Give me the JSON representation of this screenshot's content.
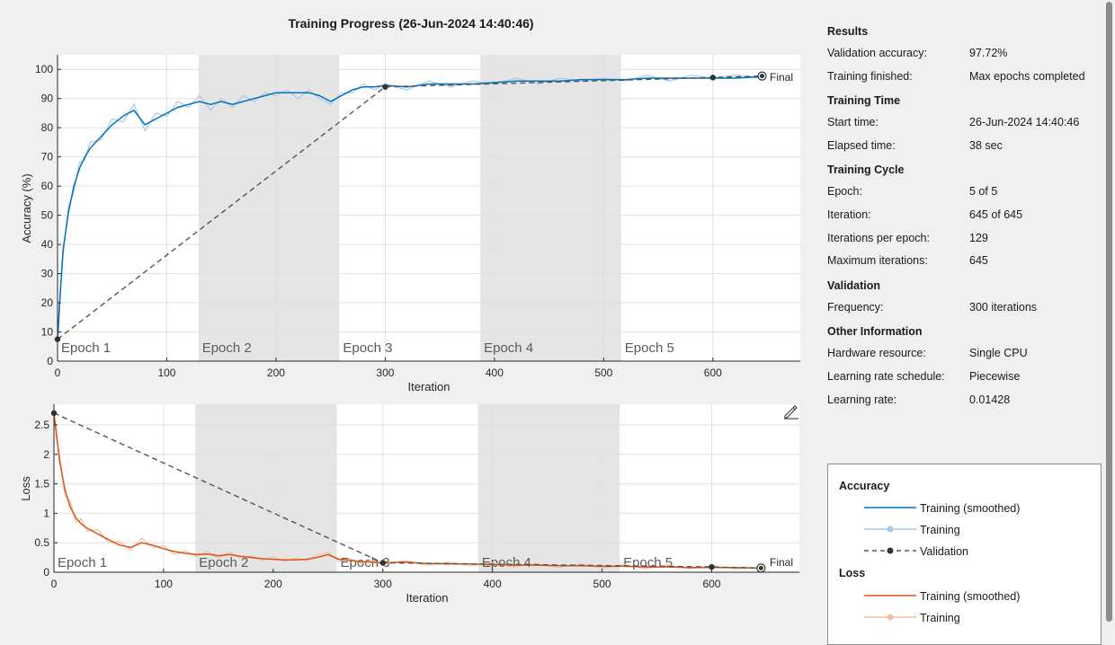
{
  "title": "Training Progress (26-Jun-2024 14:40:46)",
  "accuracy_plot": {
    "ylabel": "Accuracy (%)",
    "xlabel": "Iteration",
    "xticks": [
      "0",
      "100",
      "200",
      "300",
      "400",
      "500",
      "600"
    ],
    "yticks": [
      "0",
      "10",
      "20",
      "30",
      "40",
      "50",
      "60",
      "70",
      "80",
      "90",
      "100"
    ],
    "final_label": "Final"
  },
  "loss_plot": {
    "ylabel": "Loss",
    "xlabel": "Iteration",
    "xticks": [
      "0",
      "100",
      "200",
      "300",
      "400",
      "500",
      "600"
    ],
    "yticks": [
      "0",
      "0.5",
      "1",
      "1.5",
      "2",
      "2.5"
    ],
    "final_label": "Final"
  },
  "epoch_labels": [
    "Epoch 1",
    "Epoch 2",
    "Epoch 3",
    "Epoch 4",
    "Epoch 5"
  ],
  "chart_data": [
    {
      "type": "line",
      "name": "accuracy",
      "xlabel": "Iteration",
      "ylabel": "Accuracy (%)",
      "xlim": [
        0,
        680
      ],
      "ylim": [
        0,
        105
      ],
      "epoch_boundaries": [
        0,
        129,
        258,
        387,
        516,
        645
      ],
      "shaded_epochs": [
        2,
        4
      ],
      "grid": true,
      "series": [
        {
          "name": "Training (smoothed)",
          "color": "#0072bd",
          "x": [
            0,
            2,
            5,
            10,
            15,
            20,
            25,
            30,
            40,
            50,
            60,
            70,
            80,
            90,
            100,
            110,
            120,
            130,
            140,
            150,
            160,
            170,
            180,
            190,
            200,
            210,
            220,
            230,
            240,
            250,
            260,
            270,
            280,
            290,
            300,
            320,
            340,
            360,
            380,
            400,
            420,
            440,
            460,
            480,
            500,
            520,
            540,
            560,
            580,
            600,
            620,
            645
          ],
          "y": [
            7,
            20,
            38,
            51,
            60,
            66,
            70,
            73,
            77,
            81,
            84,
            86,
            81,
            83,
            85,
            87,
            88,
            89,
            88,
            89,
            88,
            89,
            90,
            91,
            92,
            92,
            92,
            92,
            91,
            89,
            91,
            93,
            94,
            94,
            94.5,
            94,
            95,
            95,
            95,
            95.5,
            96,
            96,
            96,
            96.5,
            96.5,
            96.5,
            97,
            97,
            97,
            97,
            97,
            97.5
          ]
        },
        {
          "name": "Training",
          "color": "#a9c8e6",
          "x": [
            0,
            2,
            5,
            10,
            15,
            20,
            25,
            30,
            40,
            50,
            60,
            70,
            80,
            90,
            100,
            110,
            120,
            130,
            140,
            150,
            160,
            170,
            180,
            190,
            200,
            210,
            220,
            230,
            240,
            250,
            260,
            270,
            280,
            290,
            300,
            320,
            340,
            360,
            380,
            400,
            420,
            440,
            460,
            480,
            500,
            520,
            540,
            560,
            580,
            600,
            620,
            645
          ],
          "y": [
            7,
            22,
            36,
            53,
            58,
            68,
            69,
            75,
            76,
            83,
            82,
            88,
            79,
            85,
            84,
            89,
            87,
            91,
            86,
            90,
            87,
            91,
            89,
            92,
            91,
            93,
            90,
            93,
            90,
            88,
            92,
            92,
            95,
            93,
            95,
            93,
            96,
            94,
            96,
            95,
            97,
            95,
            97,
            96,
            97,
            96,
            98,
            96,
            98,
            97,
            98,
            97
          ]
        },
        {
          "name": "Validation",
          "color": "#333333",
          "x": [
            0,
            300,
            600,
            645
          ],
          "y": [
            7.5,
            94,
            97.2,
            97.72
          ]
        }
      ]
    },
    {
      "type": "line",
      "name": "loss",
      "xlabel": "Iteration",
      "ylabel": "Loss",
      "xlim": [
        0,
        680
      ],
      "ylim": [
        0,
        2.85
      ],
      "epoch_boundaries": [
        0,
        129,
        258,
        387,
        516,
        645
      ],
      "shaded_epochs": [
        2,
        4
      ],
      "grid": true,
      "series": [
        {
          "name": "Training (smoothed)",
          "color": "#d95319",
          "x": [
            0,
            2,
            5,
            10,
            15,
            20,
            25,
            30,
            40,
            50,
            60,
            70,
            80,
            90,
            100,
            110,
            120,
            130,
            140,
            150,
            160,
            170,
            180,
            190,
            200,
            210,
            220,
            230,
            240,
            250,
            260,
            270,
            280,
            290,
            300,
            320,
            340,
            360,
            380,
            400,
            420,
            440,
            460,
            480,
            500,
            520,
            540,
            560,
            580,
            600,
            620,
            645
          ],
          "y": [
            2.7,
            2.4,
            1.9,
            1.4,
            1.1,
            0.92,
            0.82,
            0.75,
            0.65,
            0.55,
            0.46,
            0.42,
            0.5,
            0.46,
            0.4,
            0.35,
            0.32,
            0.3,
            0.31,
            0.28,
            0.3,
            0.27,
            0.25,
            0.23,
            0.22,
            0.21,
            0.21,
            0.22,
            0.25,
            0.3,
            0.22,
            0.2,
            0.18,
            0.17,
            0.16,
            0.17,
            0.15,
            0.14,
            0.14,
            0.13,
            0.12,
            0.12,
            0.11,
            0.11,
            0.1,
            0.1,
            0.09,
            0.09,
            0.08,
            0.08,
            0.08,
            0.07
          ]
        },
        {
          "name": "Training",
          "color": "#efc0a3",
          "x": [
            0,
            2,
            5,
            10,
            15,
            20,
            25,
            30,
            40,
            50,
            60,
            70,
            80,
            90,
            100,
            110,
            120,
            130,
            140,
            150,
            160,
            170,
            180,
            190,
            200,
            210,
            220,
            230,
            240,
            250,
            260,
            270,
            280,
            290,
            300,
            320,
            340,
            360,
            380,
            400,
            420,
            440,
            460,
            480,
            500,
            520,
            540,
            560,
            580,
            600,
            620,
            645
          ],
          "y": [
            2.7,
            2.3,
            2.0,
            1.3,
            1.2,
            0.85,
            0.9,
            0.7,
            0.72,
            0.5,
            0.52,
            0.38,
            0.58,
            0.42,
            0.45,
            0.3,
            0.36,
            0.27,
            0.35,
            0.24,
            0.34,
            0.24,
            0.28,
            0.2,
            0.26,
            0.18,
            0.24,
            0.19,
            0.29,
            0.34,
            0.18,
            0.23,
            0.15,
            0.2,
            0.13,
            0.2,
            0.12,
            0.17,
            0.11,
            0.16,
            0.09,
            0.15,
            0.08,
            0.14,
            0.07,
            0.13,
            0.06,
            0.12,
            0.06,
            0.11,
            0.06,
            0.08
          ]
        },
        {
          "name": "Validation",
          "color": "#333333",
          "x": [
            0,
            300,
            600,
            645
          ],
          "y": [
            2.7,
            0.16,
            0.09,
            0.07
          ]
        }
      ]
    }
  ],
  "results": {
    "head": "Results",
    "rows": [
      {
        "key": "Validation accuracy:",
        "value": "97.72%"
      },
      {
        "key": "Training finished:",
        "value": "Max epochs completed"
      }
    ]
  },
  "training_time": {
    "head": "Training Time",
    "rows": [
      {
        "key": "Start time:",
        "value": "26-Jun-2024 14:40:46"
      },
      {
        "key": "Elapsed time:",
        "value": "38 sec"
      }
    ]
  },
  "training_cycle": {
    "head": "Training Cycle",
    "rows": [
      {
        "key": "Epoch:",
        "value": "5 of 5"
      },
      {
        "key": "Iteration:",
        "value": "645 of 645"
      },
      {
        "key": "Iterations per epoch:",
        "value": "129"
      },
      {
        "key": "Maximum iterations:",
        "value": "645"
      }
    ]
  },
  "validation": {
    "head": "Validation",
    "rows": [
      {
        "key": "Frequency:",
        "value": "300 iterations"
      }
    ]
  },
  "other_info": {
    "head": "Other Information",
    "rows": [
      {
        "key": "Hardware resource:",
        "value": "Single CPU"
      },
      {
        "key": "Learning rate schedule:",
        "value": "Piecewise"
      },
      {
        "key": "Learning rate:",
        "value": "0.01428"
      }
    ]
  },
  "legend": {
    "accuracy_head": "Accuracy",
    "loss_head": "Loss",
    "accuracy_items": [
      {
        "label": "Training (smoothed)",
        "color": "#0072bd"
      },
      {
        "label": "Training",
        "color": "#a9c8e6"
      },
      {
        "label": "Validation",
        "color": "#333333"
      }
    ],
    "loss_items": [
      {
        "label": "Training (smoothed)",
        "color": "#d95319"
      },
      {
        "label": "Training",
        "color": "#efc0a3"
      }
    ]
  },
  "icons": {
    "export": "export-pen-icon"
  }
}
